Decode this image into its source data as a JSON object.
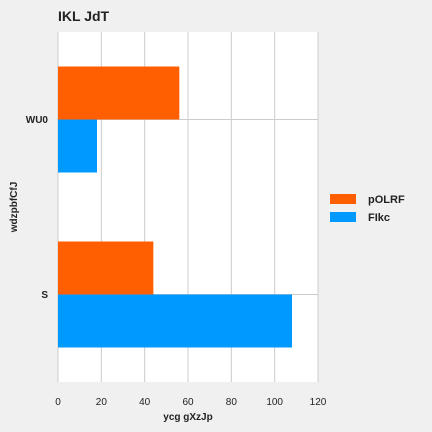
{
  "chart_data": {
    "type": "bar",
    "orientation": "horizontal",
    "title": "IKL  JdT",
    "xlabel": "ycg gXzJp",
    "ylabel": "wdzpbfCfJ",
    "categories": [
      "WU0",
      "S"
    ],
    "series": [
      {
        "name": "pOLRF",
        "values": [
          56,
          44
        ],
        "color": "#ff5f00"
      },
      {
        "name": "FIkc",
        "values": [
          18,
          108
        ],
        "color": "#0099ff"
      }
    ],
    "xlim": [
      0,
      120
    ],
    "xticks": [
      0,
      20,
      40,
      60,
      80,
      100,
      120
    ],
    "grid": true,
    "legend_position": "right",
    "background": "#ffffff",
    "page_background": "#f0f0f0",
    "grid_color": "#cccccc"
  }
}
